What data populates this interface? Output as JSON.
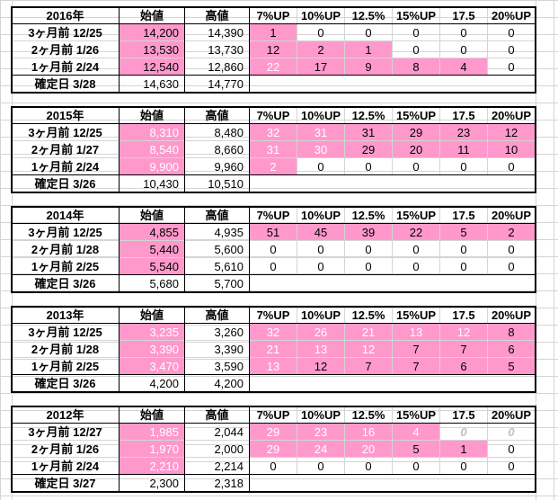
{
  "headers": [
    "始値",
    "高値",
    "7%UP",
    "10%UP",
    "12.5%",
    "15%UP",
    "17.5",
    "20%UP"
  ],
  "blocks": [
    {
      "year": "2016年",
      "rows": [
        {
          "label": "3ヶ月前  12/25",
          "open": "14,200",
          "high": "14,390",
          "pct": [
            "1",
            "0",
            "0",
            "0",
            "0",
            "0"
          ],
          "open_hl": true,
          "pct_hl": [
            true,
            false,
            false,
            false,
            false,
            false
          ]
        },
        {
          "label": "2ヶ月前  1/26",
          "open": "13,530",
          "high": "13,730",
          "pct": [
            "12",
            "2",
            "1",
            "0",
            "0",
            "0"
          ],
          "open_hl": true,
          "pct_hl": [
            true,
            true,
            true,
            false,
            false,
            false
          ]
        },
        {
          "label": "1ヶ月前  2/24",
          "open": "12,540",
          "high": "12,860",
          "pct": [
            "22",
            "17",
            "9",
            "8",
            "4",
            "0"
          ],
          "open_hl": true,
          "pct_hl": [
            true,
            true,
            true,
            true,
            true,
            false
          ],
          "white": [
            true,
            false,
            false,
            false,
            false,
            false
          ]
        }
      ],
      "confirm": {
        "label": "確定日  3/28",
        "open": "14,630",
        "high": "14,770"
      }
    },
    {
      "year": "2015年",
      "rows": [
        {
          "label": "3ヶ月前  12/25",
          "open": "8,310",
          "high": "8,480",
          "pct": [
            "32",
            "31",
            "31",
            "29",
            "23",
            "12"
          ],
          "open_hl": true,
          "open_white": true,
          "pct_hl": [
            true,
            true,
            true,
            true,
            true,
            true
          ],
          "white": [
            true,
            true,
            false,
            false,
            false,
            false
          ]
        },
        {
          "label": "2ヶ月前  1/27",
          "open": "8,540",
          "high": "8,660",
          "pct": [
            "31",
            "30",
            "29",
            "20",
            "11",
            "10"
          ],
          "open_hl": true,
          "open_white": true,
          "pct_hl": [
            true,
            true,
            true,
            true,
            true,
            true
          ],
          "white": [
            true,
            true,
            false,
            false,
            false,
            false
          ]
        },
        {
          "label": "1ヶ月前  2/24",
          "open": "9,900",
          "high": "9,960",
          "pct": [
            "2",
            "0",
            "0",
            "0",
            "0",
            "0"
          ],
          "open_hl": true,
          "open_white": true,
          "pct_hl": [
            true,
            false,
            false,
            false,
            false,
            false
          ],
          "white": [
            true,
            false,
            false,
            false,
            false,
            false
          ]
        }
      ],
      "confirm": {
        "label": "確定日  3/26",
        "open": "10,430",
        "high": "10,510"
      }
    },
    {
      "year": "2014年",
      "rows": [
        {
          "label": "3ヶ月前  12/25",
          "open": "4,855",
          "high": "4,935",
          "pct": [
            "51",
            "45",
            "39",
            "22",
            "5",
            "2"
          ],
          "open_hl": true,
          "pct_hl": [
            true,
            true,
            true,
            true,
            true,
            true
          ]
        },
        {
          "label": "2ヶ月前  1/28",
          "open": "5,440",
          "high": "5,600",
          "pct": [
            "0",
            "0",
            "0",
            "0",
            "0",
            "0"
          ],
          "open_hl": true,
          "pct_hl": [
            false,
            false,
            false,
            false,
            false,
            false
          ]
        },
        {
          "label": "1ヶ月前  2/25",
          "open": "5,540",
          "high": "5,610",
          "pct": [
            "0",
            "0",
            "0",
            "0",
            "0",
            "0"
          ],
          "open_hl": true,
          "pct_hl": [
            false,
            false,
            false,
            false,
            false,
            false
          ]
        }
      ],
      "confirm": {
        "label": "確定日  3/26",
        "open": "5,680",
        "high": "5,700"
      }
    },
    {
      "year": "2013年",
      "rows": [
        {
          "label": "3ヶ月前  12/25",
          "open": "3,235",
          "high": "3,260",
          "pct": [
            "32",
            "26",
            "21",
            "13",
            "12",
            "8"
          ],
          "open_hl": true,
          "open_white": true,
          "pct_hl": [
            true,
            true,
            true,
            true,
            true,
            true
          ],
          "white": [
            true,
            true,
            true,
            true,
            true,
            false
          ]
        },
        {
          "label": "2ヶ月前  1/28",
          "open": "3,390",
          "high": "3,390",
          "pct": [
            "21",
            "13",
            "12",
            "7",
            "7",
            "6"
          ],
          "open_hl": true,
          "open_white": true,
          "pct_hl": [
            true,
            true,
            true,
            true,
            true,
            true
          ],
          "white": [
            true,
            true,
            true,
            false,
            false,
            false
          ]
        },
        {
          "label": "1ヶ月前  2/25",
          "open": "3,470",
          "high": "3,590",
          "pct": [
            "13",
            "12",
            "7",
            "7",
            "6",
            "5"
          ],
          "open_hl": true,
          "open_white": true,
          "pct_hl": [
            true,
            true,
            true,
            true,
            true,
            true
          ],
          "white": [
            true,
            false,
            false,
            false,
            false,
            false
          ]
        }
      ],
      "confirm": {
        "label": "確定日  3/26",
        "open": "4,200",
        "high": "4,200"
      }
    },
    {
      "year": "2012年",
      "rows": [
        {
          "label": "3ヶ月前  12/27",
          "open": "1,985",
          "high": "2,044",
          "pct": [
            "29",
            "23",
            "16",
            "4",
            "0",
            "0"
          ],
          "open_hl": true,
          "open_white": true,
          "pct_hl": [
            true,
            true,
            true,
            true,
            false,
            false
          ],
          "white": [
            true,
            true,
            true,
            true,
            false,
            false
          ],
          "ghost": [
            false,
            false,
            false,
            false,
            true,
            true
          ]
        },
        {
          "label": "2ヶ月前  1/26",
          "open": "1,970",
          "high": "2,000",
          "pct": [
            "29",
            "24",
            "20",
            "5",
            "1",
            "0"
          ],
          "open_hl": true,
          "open_white": true,
          "pct_hl": [
            true,
            true,
            true,
            true,
            true,
            false
          ],
          "white": [
            true,
            true,
            true,
            false,
            false,
            false
          ]
        },
        {
          "label": "1ヶ月前  2/24",
          "open": "2,210",
          "high": "2,214",
          "pct": [
            "0",
            "0",
            "0",
            "0",
            "0",
            "0"
          ],
          "open_hl": true,
          "open_white": true,
          "pct_hl": [
            false,
            false,
            false,
            false,
            false,
            false
          ]
        }
      ],
      "confirm": {
        "label": "確定日  3/27",
        "open": "2,300",
        "high": "2,318"
      }
    }
  ]
}
